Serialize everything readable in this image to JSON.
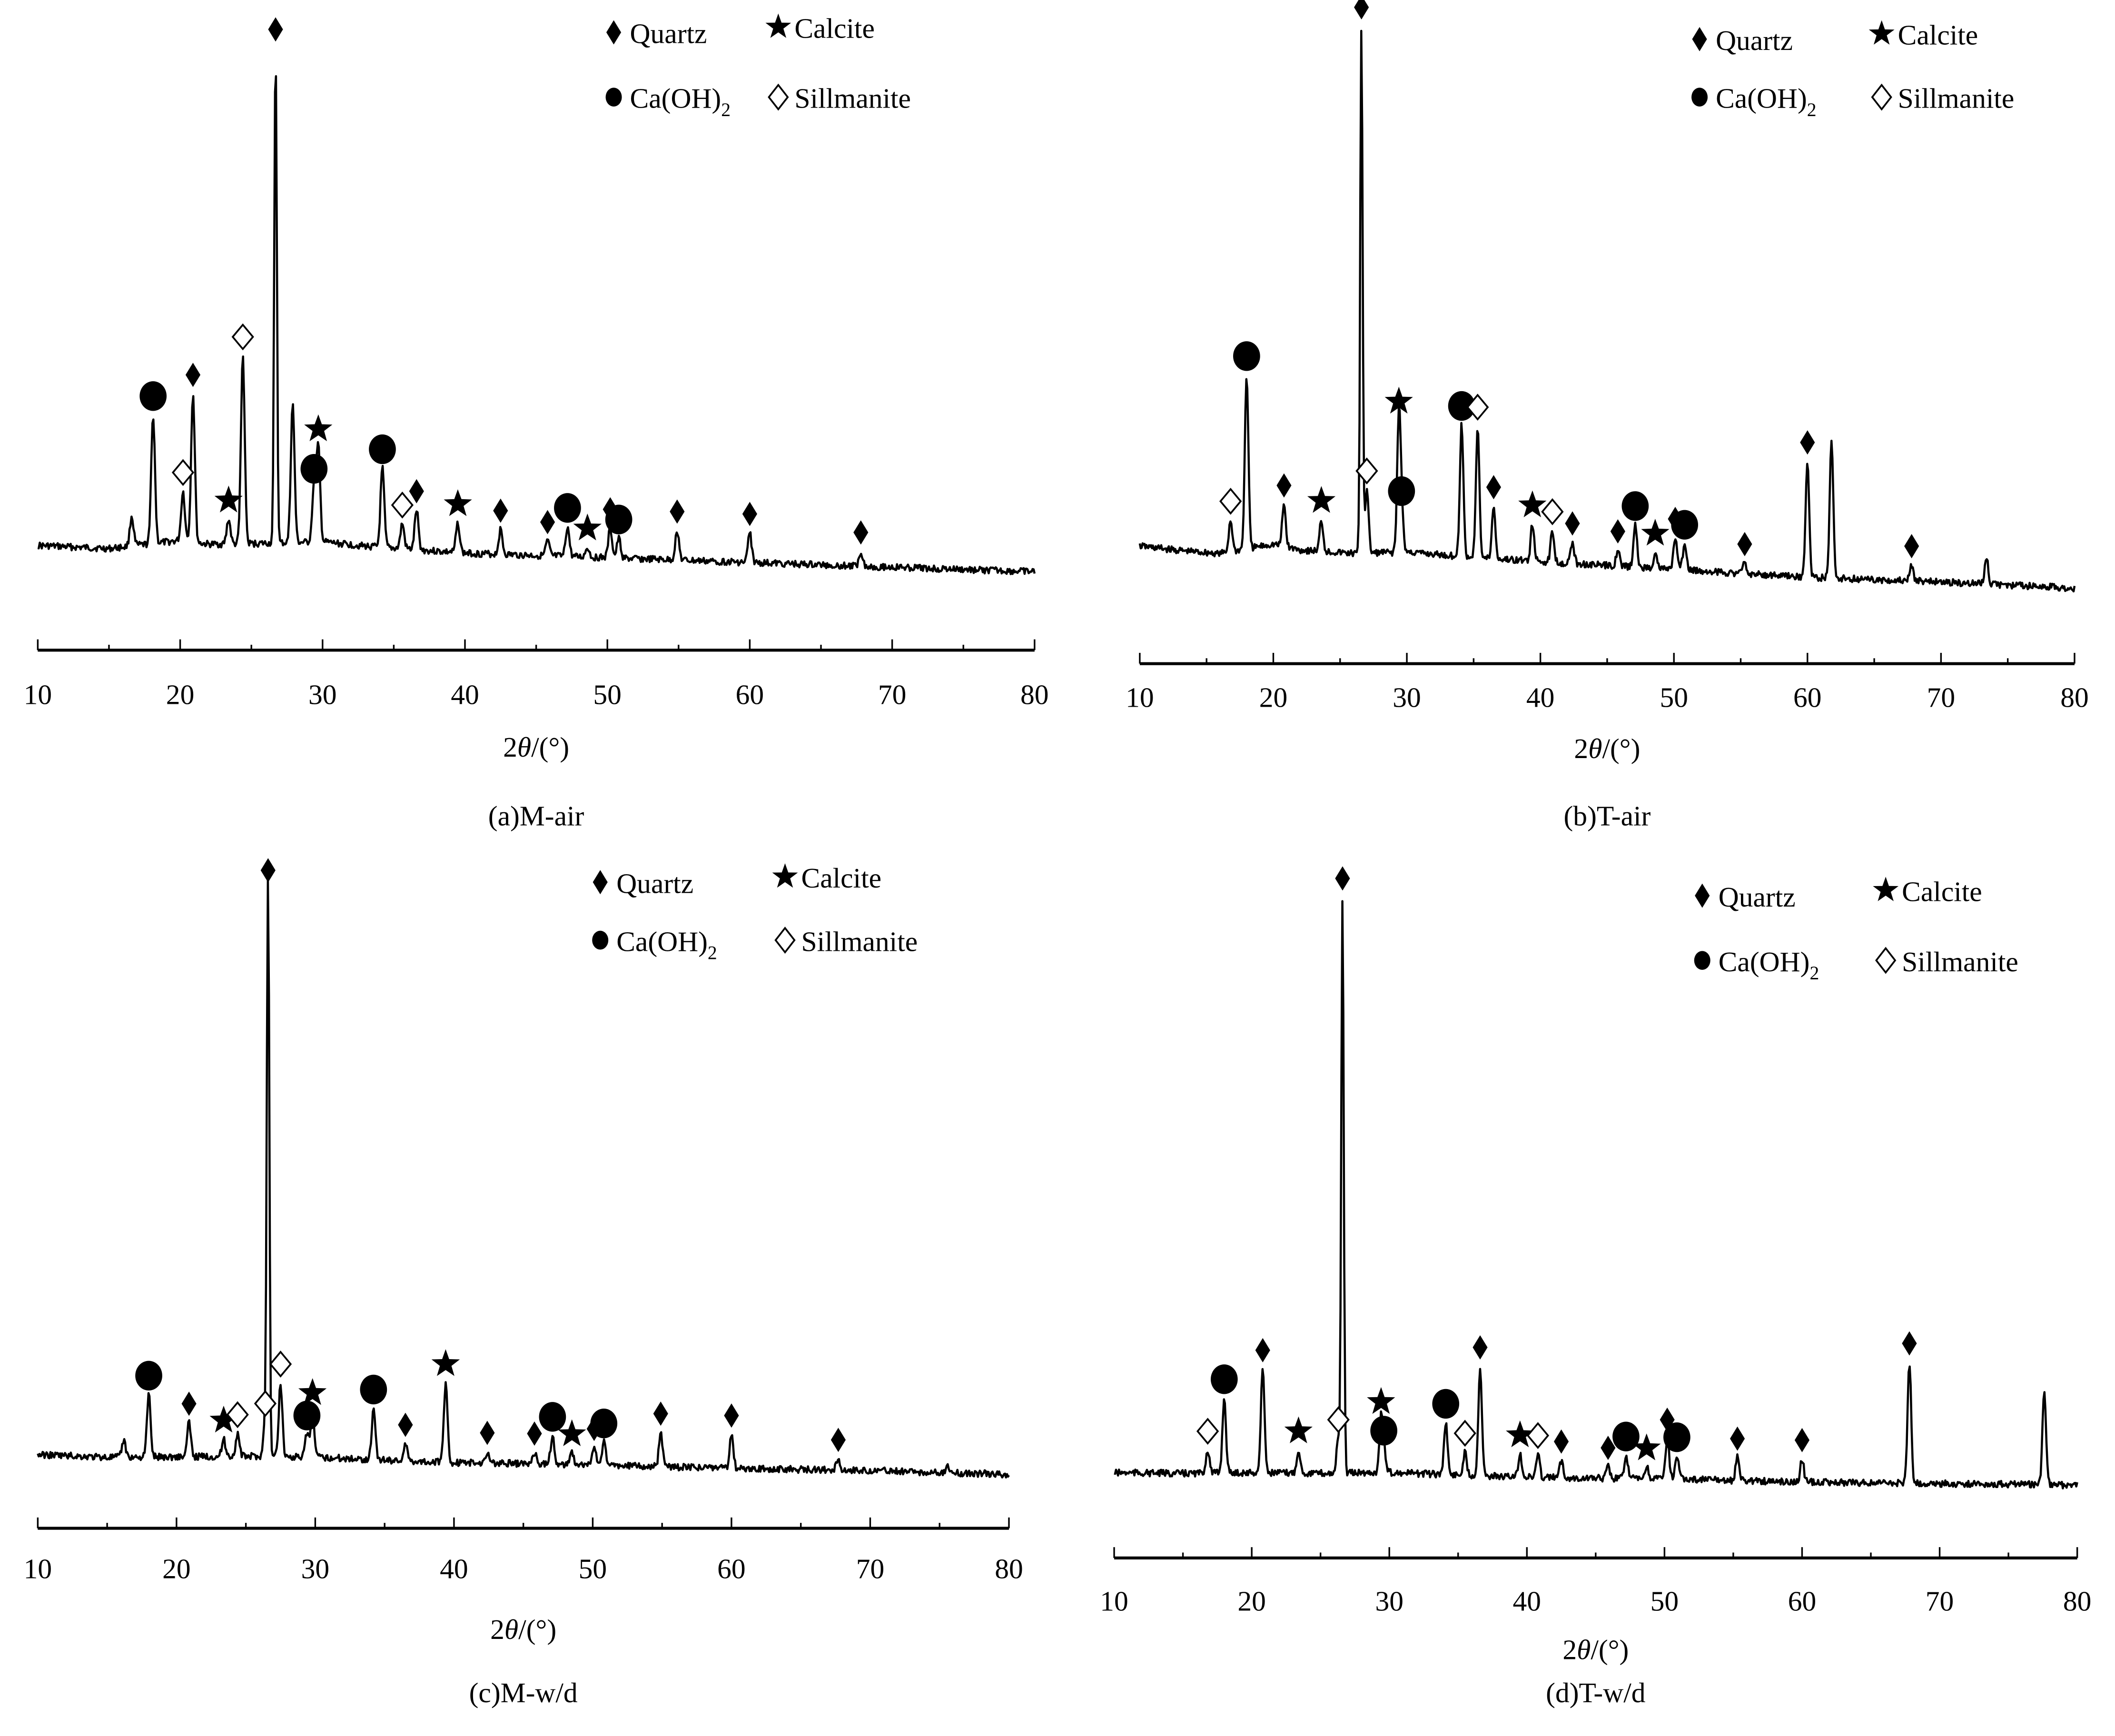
{
  "figure": {
    "marker_colors": {
      "filled": "#000000",
      "open_fill": "#ffffff",
      "stroke": "#000000"
    }
  },
  "legend": {
    "items": [
      {
        "marker": "filled-diamond",
        "label": "Quartz"
      },
      {
        "marker": "filled-star",
        "label": "Calcite"
      },
      {
        "marker": "filled-circle",
        "label": "Ca(OH)",
        "subscript": "2"
      },
      {
        "marker": "open-diamond",
        "label": "Sillmanite"
      }
    ]
  },
  "chart_data": [
    {
      "type": "line",
      "panel": "a",
      "caption": "(a)M-air",
      "title": "",
      "xlabel": "2θ/(°)",
      "ylabel": "",
      "xlim": [
        10,
        80
      ],
      "xticks": [
        10,
        20,
        30,
        40,
        50,
        60,
        70,
        80
      ],
      "minor_xticks": [
        15,
        25,
        35,
        45,
        55,
        65,
        75
      ],
      "grid": false,
      "legend_position": "top-right",
      "y_units": "relative intensity (a.u., no printed axis)",
      "baseline": [
        [
          10,
          3
        ],
        [
          15,
          2
        ],
        [
          20,
          8
        ],
        [
          22,
          6
        ],
        [
          25,
          7
        ],
        [
          30,
          9
        ],
        [
          33,
          7
        ],
        [
          40,
          4
        ],
        [
          50,
          3
        ],
        [
          60,
          2
        ],
        [
          70,
          1
        ],
        [
          80,
          0
        ]
      ],
      "peaks": [
        {
          "x": 16.6,
          "y": 6,
          "phase": null
        },
        {
          "x": 18.1,
          "y": 26,
          "phase": "Ca(OH)2"
        },
        {
          "x": 20.2,
          "y": 10,
          "phase": "Sillmanite"
        },
        {
          "x": 20.9,
          "y": 30,
          "phase": "Quartz"
        },
        {
          "x": 23.4,
          "y": 5,
          "phase": "Calcite"
        },
        {
          "x": 24.4,
          "y": 38,
          "phase": "Sillmanite"
        },
        {
          "x": 26.7,
          "y": 100,
          "phase": "Quartz"
        },
        {
          "x": 27.9,
          "y": 28,
          "phase": null
        },
        {
          "x": 29.4,
          "y": 11,
          "phase": "Ca(OH)2"
        },
        {
          "x": 29.7,
          "y": 19,
          "phase": "Calcite"
        },
        {
          "x": 34.2,
          "y": 16,
          "phase": "Ca(OH)2"
        },
        {
          "x": 35.6,
          "y": 5,
          "phase": "Sillmanite"
        },
        {
          "x": 36.6,
          "y": 8,
          "phase": "Quartz"
        },
        {
          "x": 39.5,
          "y": 6,
          "phase": "Calcite"
        },
        {
          "x": 42.5,
          "y": 5,
          "phase": "Quartz"
        },
        {
          "x": 45.8,
          "y": 3,
          "phase": "Quartz"
        },
        {
          "x": 47.2,
          "y": 6,
          "phase": "Ca(OH)2"
        },
        {
          "x": 48.6,
          "y": 2,
          "phase": "Calcite"
        },
        {
          "x": 50.2,
          "y": 6,
          "phase": "Quartz"
        },
        {
          "x": 50.8,
          "y": 4,
          "phase": "Ca(OH)2"
        },
        {
          "x": 54.9,
          "y": 6,
          "phase": "Quartz"
        },
        {
          "x": 60.0,
          "y": 6,
          "phase": "Quartz"
        },
        {
          "x": 67.8,
          "y": 3,
          "phase": "Quartz"
        }
      ]
    },
    {
      "type": "line",
      "panel": "b",
      "caption": "(b)T-air",
      "title": "",
      "xlabel": "2θ/(°)",
      "ylabel": "",
      "xlim": [
        10,
        80
      ],
      "xticks": [
        10,
        20,
        30,
        40,
        50,
        60,
        70,
        80
      ],
      "minor_xticks": [
        15,
        25,
        35,
        45,
        55,
        65,
        75
      ],
      "grid": false,
      "legend_position": "top-right",
      "y_units": "relative intensity (a.u., no printed axis)",
      "baseline": [
        [
          10,
          6
        ],
        [
          13,
          4
        ],
        [
          16,
          3
        ],
        [
          20,
          10
        ],
        [
          22,
          7
        ],
        [
          26,
          6
        ],
        [
          30,
          8
        ],
        [
          35,
          6
        ],
        [
          40,
          5
        ],
        [
          50,
          3
        ],
        [
          60,
          1
        ],
        [
          70,
          1
        ],
        [
          80,
          0
        ]
      ],
      "peaks": [
        {
          "x": 16.8,
          "y": 6,
          "phase": "Sillmanite"
        },
        {
          "x": 18.0,
          "y": 33,
          "phase": "Ca(OH)2"
        },
        {
          "x": 20.8,
          "y": 8,
          "phase": "Quartz"
        },
        {
          "x": 23.6,
          "y": 6,
          "phase": "Calcite"
        },
        {
          "x": 26.6,
          "y": 100,
          "phase": "Quartz"
        },
        {
          "x": 27.0,
          "y": 12,
          "phase": "Sillmanite"
        },
        {
          "x": 29.4,
          "y": 25,
          "phase": "Calcite"
        },
        {
          "x": 29.6,
          "y": 8,
          "phase": "Ca(OH)2"
        },
        {
          "x": 34.1,
          "y": 25,
          "phase": "Ca(OH)2"
        },
        {
          "x": 35.3,
          "y": 25,
          "phase": "Sillmanite"
        },
        {
          "x": 36.5,
          "y": 10,
          "phase": "Quartz"
        },
        {
          "x": 39.4,
          "y": 7,
          "phase": "Calcite"
        },
        {
          "x": 40.9,
          "y": 6,
          "phase": "Sillmanite"
        },
        {
          "x": 42.4,
          "y": 4,
          "phase": "Quartz"
        },
        {
          "x": 45.8,
          "y": 3,
          "phase": "Quartz"
        },
        {
          "x": 47.1,
          "y": 8,
          "phase": "Ca(OH)2"
        },
        {
          "x": 48.6,
          "y": 3,
          "phase": "Calcite"
        },
        {
          "x": 50.1,
          "y": 6,
          "phase": "Quartz"
        },
        {
          "x": 50.8,
          "y": 5,
          "phase": "Ca(OH)2"
        },
        {
          "x": 55.3,
          "y": 2,
          "phase": "Quartz"
        },
        {
          "x": 60.0,
          "y": 22,
          "phase": "Quartz"
        },
        {
          "x": 61.8,
          "y": 26,
          "phase": null
        },
        {
          "x": 67.8,
          "y": 3,
          "phase": "Quartz"
        },
        {
          "x": 73.4,
          "y": 5,
          "phase": null
        }
      ]
    },
    {
      "type": "line",
      "panel": "c",
      "caption": "(c)M-w/d",
      "title": "",
      "xlabel": "2θ/(°)",
      "ylabel": "",
      "xlim": [
        10,
        80
      ],
      "xticks": [
        10,
        20,
        30,
        40,
        50,
        60,
        70,
        80
      ],
      "minor_xticks": [
        15,
        25,
        35,
        45,
        55,
        65,
        75
      ],
      "grid": false,
      "legend_position": "top-right",
      "y_units": "relative intensity (a.u., no printed axis)",
      "baseline": [
        [
          10,
          3
        ],
        [
          15,
          2
        ],
        [
          20,
          3
        ],
        [
          25,
          4
        ],
        [
          30,
          4
        ],
        [
          35,
          3
        ],
        [
          40,
          2
        ],
        [
          50,
          2
        ],
        [
          60,
          1
        ],
        [
          70,
          1
        ],
        [
          80,
          0
        ]
      ],
      "peaks": [
        {
          "x": 16.2,
          "y": 3,
          "phase": null
        },
        {
          "x": 18.0,
          "y": 11,
          "phase": "Ca(OH)2"
        },
        {
          "x": 20.9,
          "y": 6,
          "phase": "Quartz"
        },
        {
          "x": 23.4,
          "y": 3,
          "phase": "Calcite"
        },
        {
          "x": 24.4,
          "y": 4,
          "phase": "Sillmanite"
        },
        {
          "x": 26.6,
          "y": 100,
          "phase": "Quartz"
        },
        {
          "x": 26.4,
          "y": 6,
          "phase": "Sillmanite"
        },
        {
          "x": 27.5,
          "y": 13,
          "phase": "Sillmanite"
        },
        {
          "x": 29.4,
          "y": 4,
          "phase": "Ca(OH)2"
        },
        {
          "x": 29.8,
          "y": 8,
          "phase": "Calcite"
        },
        {
          "x": 34.2,
          "y": 9,
          "phase": "Ca(OH)2"
        },
        {
          "x": 36.5,
          "y": 3,
          "phase": "Quartz"
        },
        {
          "x": 39.4,
          "y": 14,
          "phase": "Calcite"
        },
        {
          "x": 42.4,
          "y": 2,
          "phase": "Quartz"
        },
        {
          "x": 45.8,
          "y": 2,
          "phase": "Quartz"
        },
        {
          "x": 47.1,
          "y": 5,
          "phase": "Ca(OH)2"
        },
        {
          "x": 48.5,
          "y": 2,
          "phase": "Calcite"
        },
        {
          "x": 50.1,
          "y": 3,
          "phase": "Quartz"
        },
        {
          "x": 50.8,
          "y": 4,
          "phase": "Ca(OH)2"
        },
        {
          "x": 54.9,
          "y": 6,
          "phase": "Quartz"
        },
        {
          "x": 60.0,
          "y": 6,
          "phase": "Quartz"
        },
        {
          "x": 67.7,
          "y": 2,
          "phase": "Quartz"
        },
        {
          "x": 75.6,
          "y": 1,
          "phase": null
        }
      ]
    },
    {
      "type": "line",
      "panel": "d",
      "caption": "(d)T-w/d",
      "title": "",
      "xlabel": "2θ/(°)",
      "ylabel": "",
      "xlim": [
        10,
        80
      ],
      "xticks": [
        10,
        20,
        30,
        40,
        50,
        60,
        70,
        80
      ],
      "minor_xticks": [
        15,
        25,
        35,
        45,
        55,
        65,
        75
      ],
      "grid": false,
      "legend_position": "top-right",
      "y_units": "relative intensity (a.u., no printed axis)",
      "baseline": [
        [
          10,
          1
        ],
        [
          15,
          1
        ],
        [
          20,
          2
        ],
        [
          25,
          2
        ],
        [
          30,
          3
        ],
        [
          35,
          2
        ],
        [
          40,
          1
        ],
        [
          50,
          1
        ],
        [
          60,
          0
        ],
        [
          70,
          0
        ],
        [
          80,
          0
        ]
      ],
      "peaks": [
        {
          "x": 16.8,
          "y": 4,
          "phase": "Sillmanite"
        },
        {
          "x": 18.0,
          "y": 13,
          "phase": "Ca(OH)2"
        },
        {
          "x": 20.8,
          "y": 18,
          "phase": "Quartz"
        },
        {
          "x": 23.4,
          "y": 4,
          "phase": "Calcite"
        },
        {
          "x": 26.6,
          "y": 100,
          "phase": "Quartz"
        },
        {
          "x": 26.3,
          "y": 6,
          "phase": "Sillmanite"
        },
        {
          "x": 29.4,
          "y": 9,
          "phase": "Calcite"
        },
        {
          "x": 29.6,
          "y": 4,
          "phase": "Ca(OH)2"
        },
        {
          "x": 34.1,
          "y": 9,
          "phase": "Ca(OH)2"
        },
        {
          "x": 35.5,
          "y": 4,
          "phase": "Sillmanite"
        },
        {
          "x": 36.6,
          "y": 19,
          "phase": "Quartz"
        },
        {
          "x": 39.5,
          "y": 4,
          "phase": "Calcite"
        },
        {
          "x": 40.8,
          "y": 4,
          "phase": "Sillmanite"
        },
        {
          "x": 42.5,
          "y": 3,
          "phase": "Quartz"
        },
        {
          "x": 45.9,
          "y": 2,
          "phase": "Quartz"
        },
        {
          "x": 47.2,
          "y": 4,
          "phase": "Ca(OH)2"
        },
        {
          "x": 48.7,
          "y": 2,
          "phase": "Calcite"
        },
        {
          "x": 50.2,
          "y": 7,
          "phase": "Quartz"
        },
        {
          "x": 50.9,
          "y": 4,
          "phase": "Ca(OH)2"
        },
        {
          "x": 55.3,
          "y": 4,
          "phase": "Quartz"
        },
        {
          "x": 60.0,
          "y": 4,
          "phase": "Quartz"
        },
        {
          "x": 67.8,
          "y": 21,
          "phase": "Quartz"
        },
        {
          "x": 77.6,
          "y": 16,
          "phase": null
        }
      ]
    }
  ]
}
